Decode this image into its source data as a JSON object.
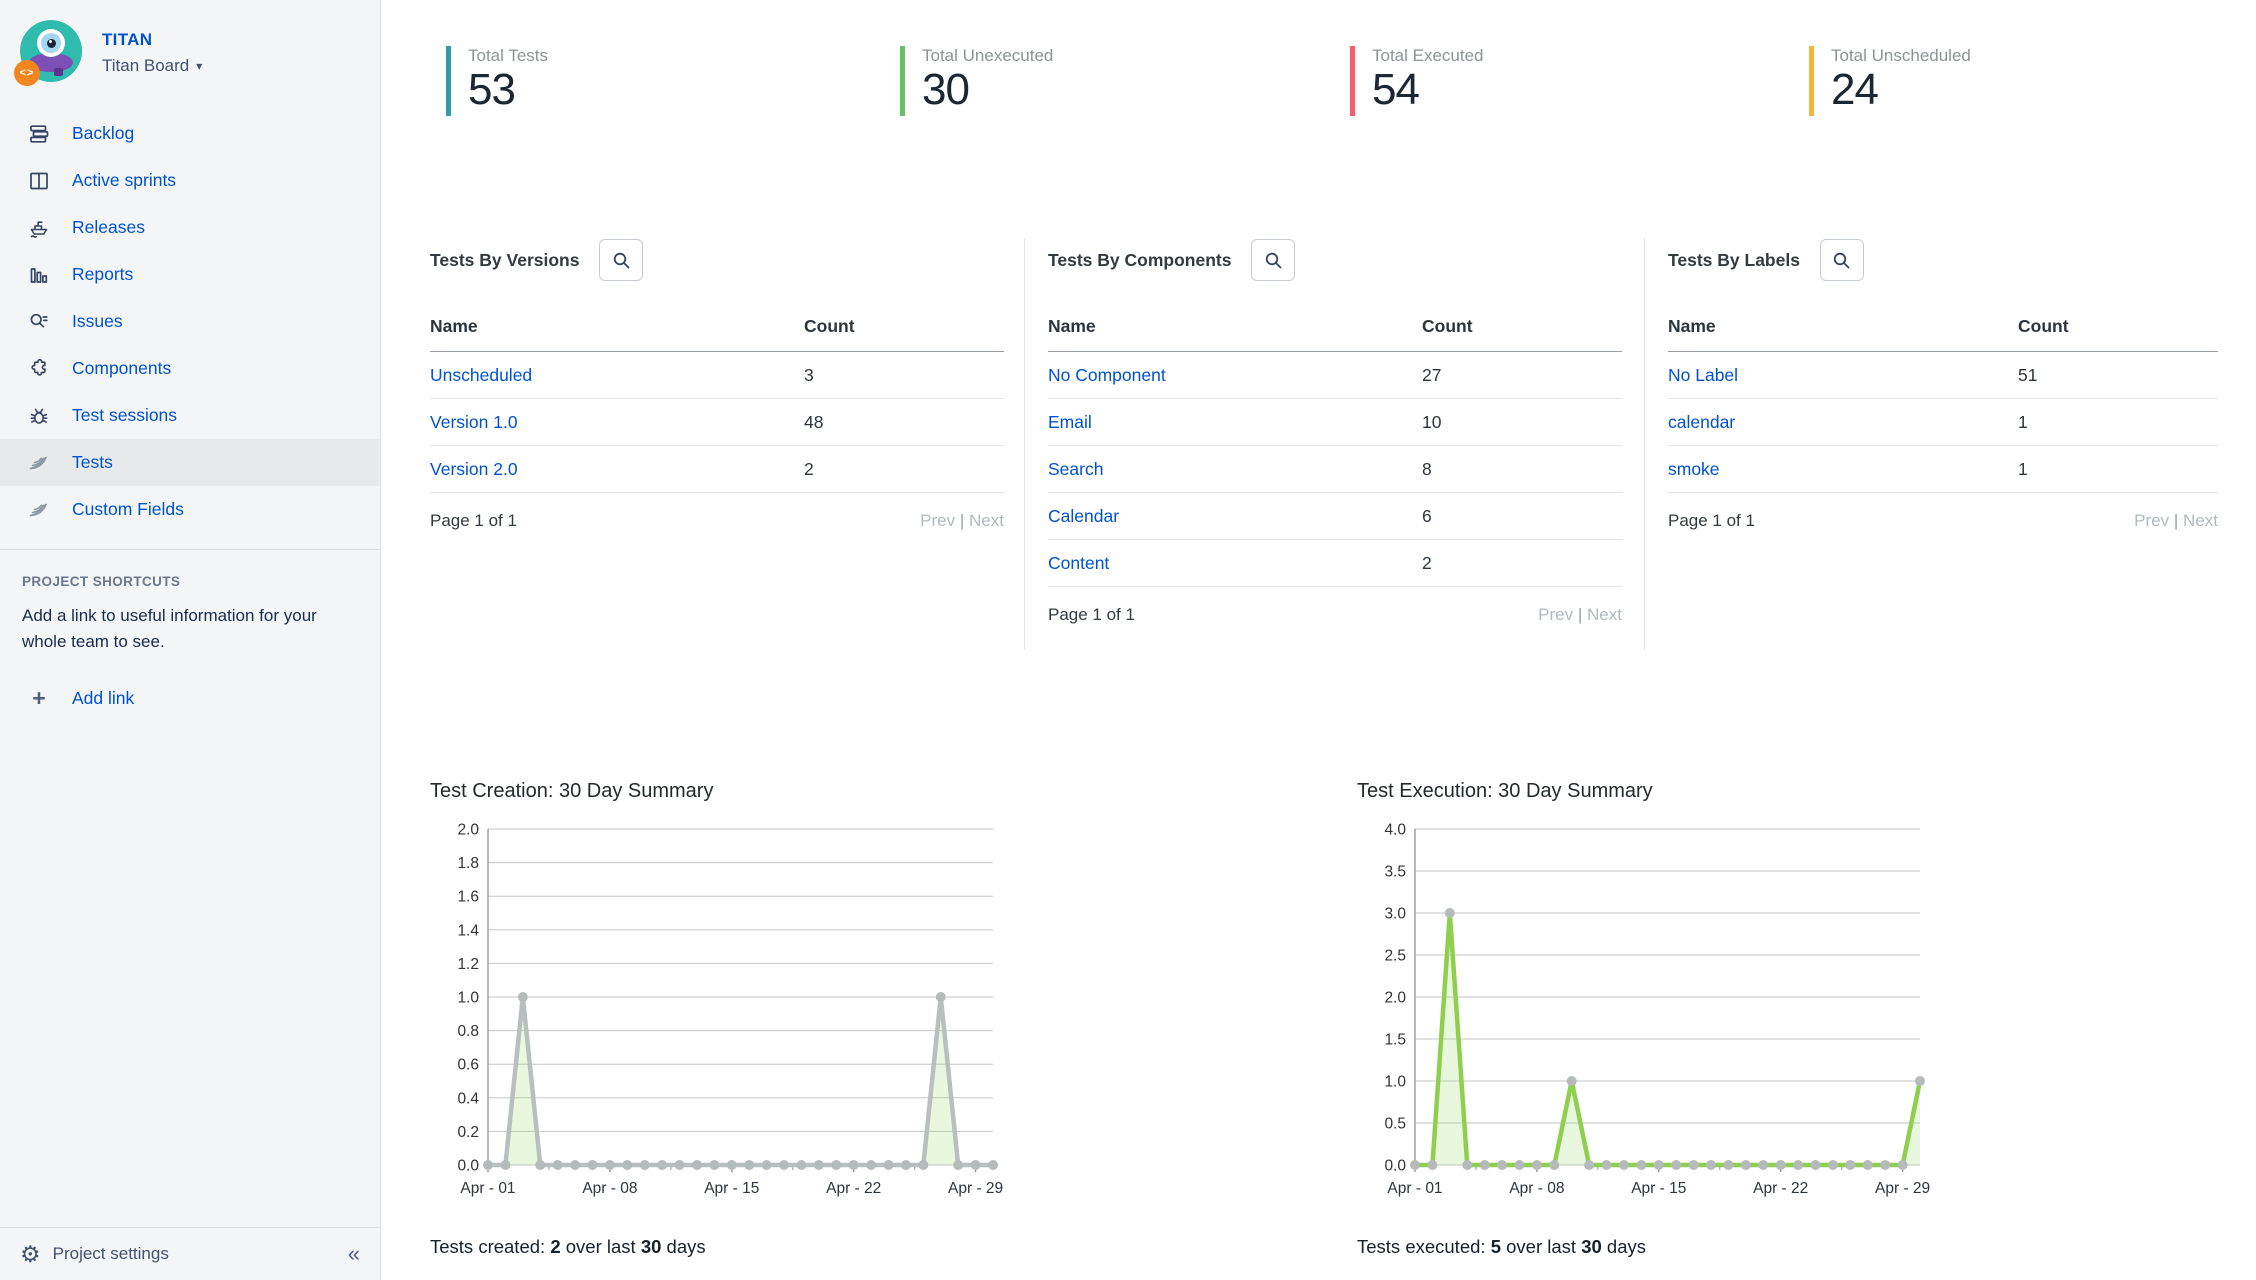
{
  "sidebar": {
    "project_name": "TITAN",
    "board_name": "Titan Board",
    "avatar_badge": "<>",
    "items": [
      {
        "label": "Backlog",
        "icon": "backlog-icon"
      },
      {
        "label": "Active sprints",
        "icon": "board-icon"
      },
      {
        "label": "Releases",
        "icon": "ship-icon"
      },
      {
        "label": "Reports",
        "icon": "bar-chart-icon"
      },
      {
        "label": "Issues",
        "icon": "search-list-icon"
      },
      {
        "label": "Components",
        "icon": "puzzle-icon"
      },
      {
        "label": "Test sessions",
        "icon": "bug-icon"
      },
      {
        "label": "Tests",
        "icon": "wing-icon",
        "selected": true
      },
      {
        "label": "Custom Fields",
        "icon": "wing-icon"
      }
    ],
    "shortcuts_header": "PROJECT SHORTCUTS",
    "shortcuts_text": "Add a link to useful information for your whole team to see.",
    "add_link_label": "Add link",
    "project_settings_label": "Project settings",
    "collapse_glyph": "«",
    "caret_glyph": "▾",
    "plus_glyph": "+",
    "gear_glyph": "⚙"
  },
  "stats": [
    {
      "label": "Total Tests",
      "value": "53",
      "color": "#2f9ea6"
    },
    {
      "label": "Total Unexecuted",
      "value": "30",
      "color": "#68bf66"
    },
    {
      "label": "Total Executed",
      "value": "54",
      "color": "#f2606b"
    },
    {
      "label": "Total Unscheduled",
      "value": "24",
      "color": "#f3b73f"
    }
  ],
  "panels": [
    {
      "title": "Tests By Versions",
      "columns": [
        "Name",
        "Count"
      ],
      "rows": [
        [
          "Unscheduled",
          "3"
        ],
        [
          "Version 1.0",
          "48"
        ],
        [
          "Version 2.0",
          "2"
        ]
      ],
      "page_label": "Page 1 of 1",
      "prev": "Prev",
      "sep": "|",
      "next": "Next"
    },
    {
      "title": "Tests By Components",
      "columns": [
        "Name",
        "Count"
      ],
      "rows": [
        [
          "No Component",
          "27"
        ],
        [
          "Email",
          "10"
        ],
        [
          "Search",
          "8"
        ],
        [
          "Calendar",
          "6"
        ],
        [
          "Content",
          "2"
        ]
      ],
      "page_label": "Page 1 of 1",
      "prev": "Prev",
      "sep": "|",
      "next": "Next"
    },
    {
      "title": "Tests By Labels",
      "columns": [
        "Name",
        "Count"
      ],
      "rows": [
        [
          "No Label",
          "51"
        ],
        [
          "calendar",
          "1"
        ],
        [
          "smoke",
          "1"
        ]
      ],
      "page_label": "Page 1 of 1",
      "prev": "Prev",
      "sep": "|",
      "next": "Next"
    }
  ],
  "chart_data": [
    {
      "type": "area",
      "title": "Test Creation: 30 Day Summary",
      "xlabel": "",
      "ylabel": "",
      "x_days": 30,
      "values": [
        0,
        0,
        1,
        0,
        0,
        0,
        0,
        0,
        0,
        0,
        0,
        0,
        0,
        0,
        0,
        0,
        0,
        0,
        0,
        0,
        0,
        0,
        0,
        0,
        0,
        0,
        1,
        0,
        0,
        0
      ],
      "ylim": [
        0,
        2
      ],
      "yticks": [
        0,
        0.2,
        0.4,
        0.6,
        0.8,
        1,
        1.2,
        1.4,
        1.6,
        1.8,
        2
      ],
      "ytick_labels": [
        "0.0",
        "0.2",
        "0.4",
        "0.6",
        "0.8",
        "1.0",
        "1.2",
        "1.4",
        "1.6",
        "1.8",
        "2.0"
      ],
      "xticks": [
        {
          "day": 1,
          "label": "Apr - 01"
        },
        {
          "day": 8,
          "label": "Apr - 08"
        },
        {
          "day": 15,
          "label": "Apr - 15"
        },
        {
          "day": 22,
          "label": "Apr - 22"
        },
        {
          "day": 29,
          "label": "Apr - 29"
        }
      ],
      "minor_tick_days": [
        4.5,
        11.5,
        18.5,
        25.5
      ],
      "grid": true,
      "legend": "none",
      "line_color": "#b9bfbf",
      "fill_color": "rgba(141,208,77,0.18)",
      "marker_color": "#b5bbbb",
      "caption": {
        "prefix": "Tests created: ",
        "value": "2",
        "mid": " over last ",
        "days": "30",
        "suffix": " days"
      }
    },
    {
      "type": "area",
      "title": "Test Execution: 30 Day Summary",
      "xlabel": "",
      "ylabel": "",
      "x_days": 30,
      "values": [
        0,
        0,
        3,
        0,
        0,
        0,
        0,
        0,
        0,
        1,
        0,
        0,
        0,
        0,
        0,
        0,
        0,
        0,
        0,
        0,
        0,
        0,
        0,
        0,
        0,
        0,
        0,
        0,
        0,
        1
      ],
      "ylim": [
        0,
        4
      ],
      "yticks": [
        0,
        0.5,
        1,
        1.5,
        2,
        2.5,
        3,
        3.5,
        4
      ],
      "ytick_labels": [
        "0.0",
        "0.5",
        "1.0",
        "1.5",
        "2.0",
        "2.5",
        "3.0",
        "3.5",
        "4.0"
      ],
      "xticks": [
        {
          "day": 1,
          "label": "Apr - 01"
        },
        {
          "day": 8,
          "label": "Apr - 08"
        },
        {
          "day": 15,
          "label": "Apr - 15"
        },
        {
          "day": 22,
          "label": "Apr - 22"
        },
        {
          "day": 29,
          "label": "Apr - 29"
        }
      ],
      "minor_tick_days": [
        4.5,
        11.5,
        18.5,
        25.5
      ],
      "grid": true,
      "legend": "none",
      "line_color": "#8ed04e",
      "fill_color": "rgba(141,208,77,0.18)",
      "marker_color": "#b5bbbb",
      "caption": {
        "prefix": "Tests executed: ",
        "value": "5",
        "mid": " over last ",
        "days": "30",
        "suffix": " days"
      }
    }
  ]
}
